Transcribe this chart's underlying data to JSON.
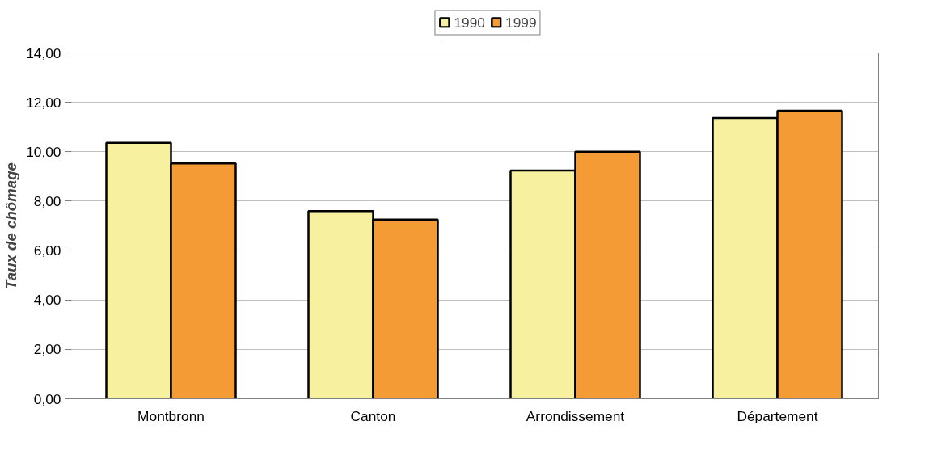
{
  "chart_data": {
    "type": "bar",
    "ylabel": "Taux de chômage",
    "categories": [
      "Montbronn",
      "Canton",
      "Arrondissement",
      "Département"
    ],
    "series": [
      {
        "name": "1990",
        "color": "#f7f09f",
        "values": [
          10.36,
          7.6,
          9.24,
          11.37
        ]
      },
      {
        "name": "1999",
        "color": "#f49b36",
        "values": [
          9.53,
          7.25,
          10.0,
          11.66
        ]
      }
    ],
    "ylim": [
      0,
      14
    ],
    "yticks": [
      {
        "value": 0,
        "label": "0,00"
      },
      {
        "value": 2,
        "label": "2,00"
      },
      {
        "value": 4,
        "label": "4,00"
      },
      {
        "value": 6,
        "label": "6,00"
      },
      {
        "value": 8,
        "label": "8,00"
      },
      {
        "value": 10,
        "label": "10,00"
      },
      {
        "value": 12,
        "label": "12,00"
      },
      {
        "value": 14,
        "label": "14,00"
      }
    ],
    "grid": "y",
    "legend": "top"
  }
}
